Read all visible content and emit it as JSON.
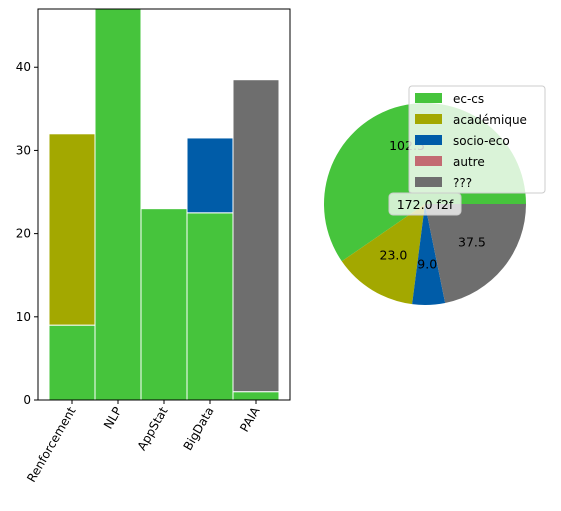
{
  "chart_data": [
    {
      "type": "bar",
      "stacked": true,
      "categories": [
        "Renforcement",
        "NLP",
        "AppStat",
        "BigData",
        "PAIA"
      ],
      "ylim": [
        0,
        47
      ],
      "yticks": [
        0,
        10,
        20,
        30,
        40
      ],
      "grid": false,
      "series": [
        {
          "name": "ec-cs",
          "color": "#46c43c",
          "values": [
            9,
            47,
            23,
            22.5,
            1
          ]
        },
        {
          "name": "académique",
          "color": "#a3a800",
          "values": [
            23,
            0,
            0,
            0,
            0
          ]
        },
        {
          "name": "socio-eco",
          "color": "#005ca8",
          "values": [
            0,
            0,
            0,
            9,
            0
          ]
        },
        {
          "name": "autre",
          "color": "#c36b72",
          "values": [
            0,
            0,
            0,
            0,
            0
          ]
        },
        {
          "name": "???",
          "color": "#6e6e6e",
          "values": [
            0,
            0,
            0,
            0,
            37.5
          ]
        }
      ]
    },
    {
      "type": "pie",
      "slices": [
        {
          "name": "ec-cs",
          "value": 102.5,
          "label": "102.5",
          "color": "#46c43c"
        },
        {
          "name": "académique",
          "value": 23.0,
          "label": "23.0",
          "color": "#a3a800"
        },
        {
          "name": "socio-eco",
          "value": 9.0,
          "label": "9.0",
          "color": "#005ca8"
        },
        {
          "name": "autre",
          "value": 0,
          "label": "",
          "color": "#c36b72"
        },
        {
          "name": "???",
          "value": 37.5,
          "label": "37.5",
          "color": "#6e6e6e"
        }
      ],
      "center_label": "172.0 f2f",
      "legend": {
        "placement": "upper-right",
        "entries": [
          {
            "name": "ec-cs",
            "color": "#46c43c"
          },
          {
            "name": "académique",
            "color": "#a3a800"
          },
          {
            "name": "socio-eco",
            "color": "#005ca8"
          },
          {
            "name": "autre",
            "color": "#c36b72"
          },
          {
            "name": "???",
            "color": "#6e6e6e"
          }
        ]
      }
    }
  ]
}
